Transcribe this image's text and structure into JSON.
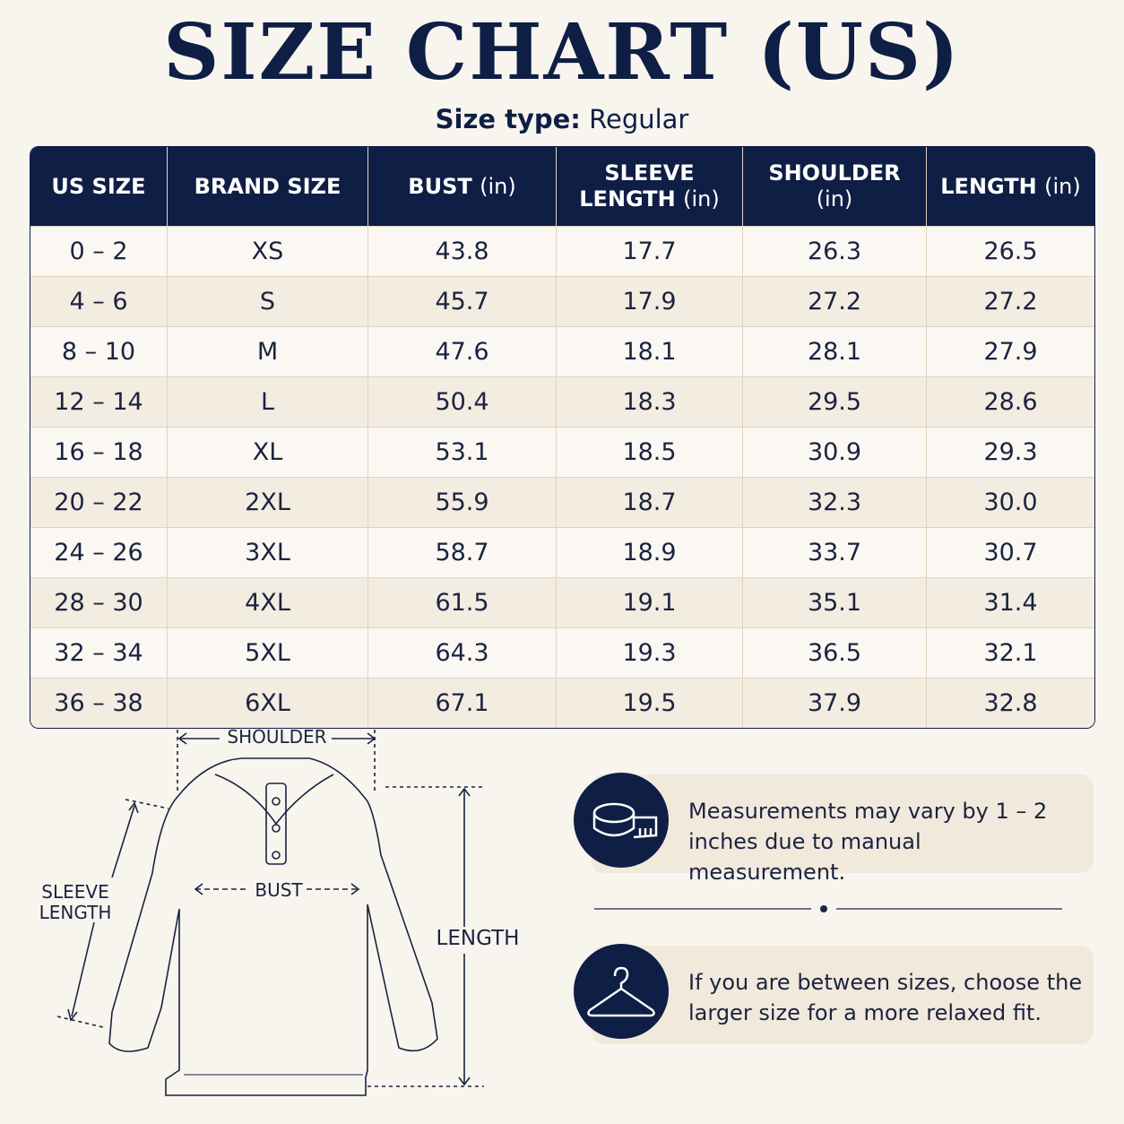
{
  "title": "SIZE CHART (US)",
  "size_type": {
    "label": "Size type:",
    "value": "Regular"
  },
  "table": {
    "headers": [
      {
        "label": "US SIZE"
      },
      {
        "label": "BRAND SIZE"
      },
      {
        "label": "BUST",
        "unit": "(in)"
      },
      {
        "label": "SLEEVE LENGTH",
        "unit": "(in)"
      },
      {
        "label": "SHOULDER",
        "unit": "(in)"
      },
      {
        "label": "LENGTH",
        "unit": "(in)"
      }
    ],
    "rows": [
      [
        "0 – 2",
        "XS",
        "43.8",
        "17.7",
        "26.3",
        "26.5"
      ],
      [
        "4 – 6",
        "S",
        "45.7",
        "17.9",
        "27.2",
        "27.2"
      ],
      [
        "8 – 10",
        "M",
        "47.6",
        "18.1",
        "28.1",
        "27.9"
      ],
      [
        "12 – 14",
        "L",
        "50.4",
        "18.3",
        "29.5",
        "28.6"
      ],
      [
        "16 – 18",
        "XL",
        "53.1",
        "18.5",
        "30.9",
        "29.3"
      ],
      [
        "20 – 22",
        "2XL",
        "55.9",
        "18.7",
        "32.3",
        "30.0"
      ],
      [
        "24 – 26",
        "3XL",
        "58.7",
        "18.9",
        "33.7",
        "30.7"
      ],
      [
        "28 – 30",
        "4XL",
        "61.5",
        "19.1",
        "35.1",
        "31.4"
      ],
      [
        "32 – 34",
        "5XL",
        "64.3",
        "19.3",
        "36.5",
        "32.1"
      ],
      [
        "36 – 38",
        "6XL",
        "67.1",
        "19.5",
        "37.9",
        "32.8"
      ]
    ]
  },
  "diagram": {
    "shoulder": "SHOULDER",
    "bust": "BUST",
    "sleeve_length": "SLEEVE LENGTH",
    "length": "LENGTH"
  },
  "notes": [
    "Measurements may vary by 1 – 2 inches due to manual measurement.",
    "If you are between sizes, choose the larger size for a more relaxed fit."
  ]
}
